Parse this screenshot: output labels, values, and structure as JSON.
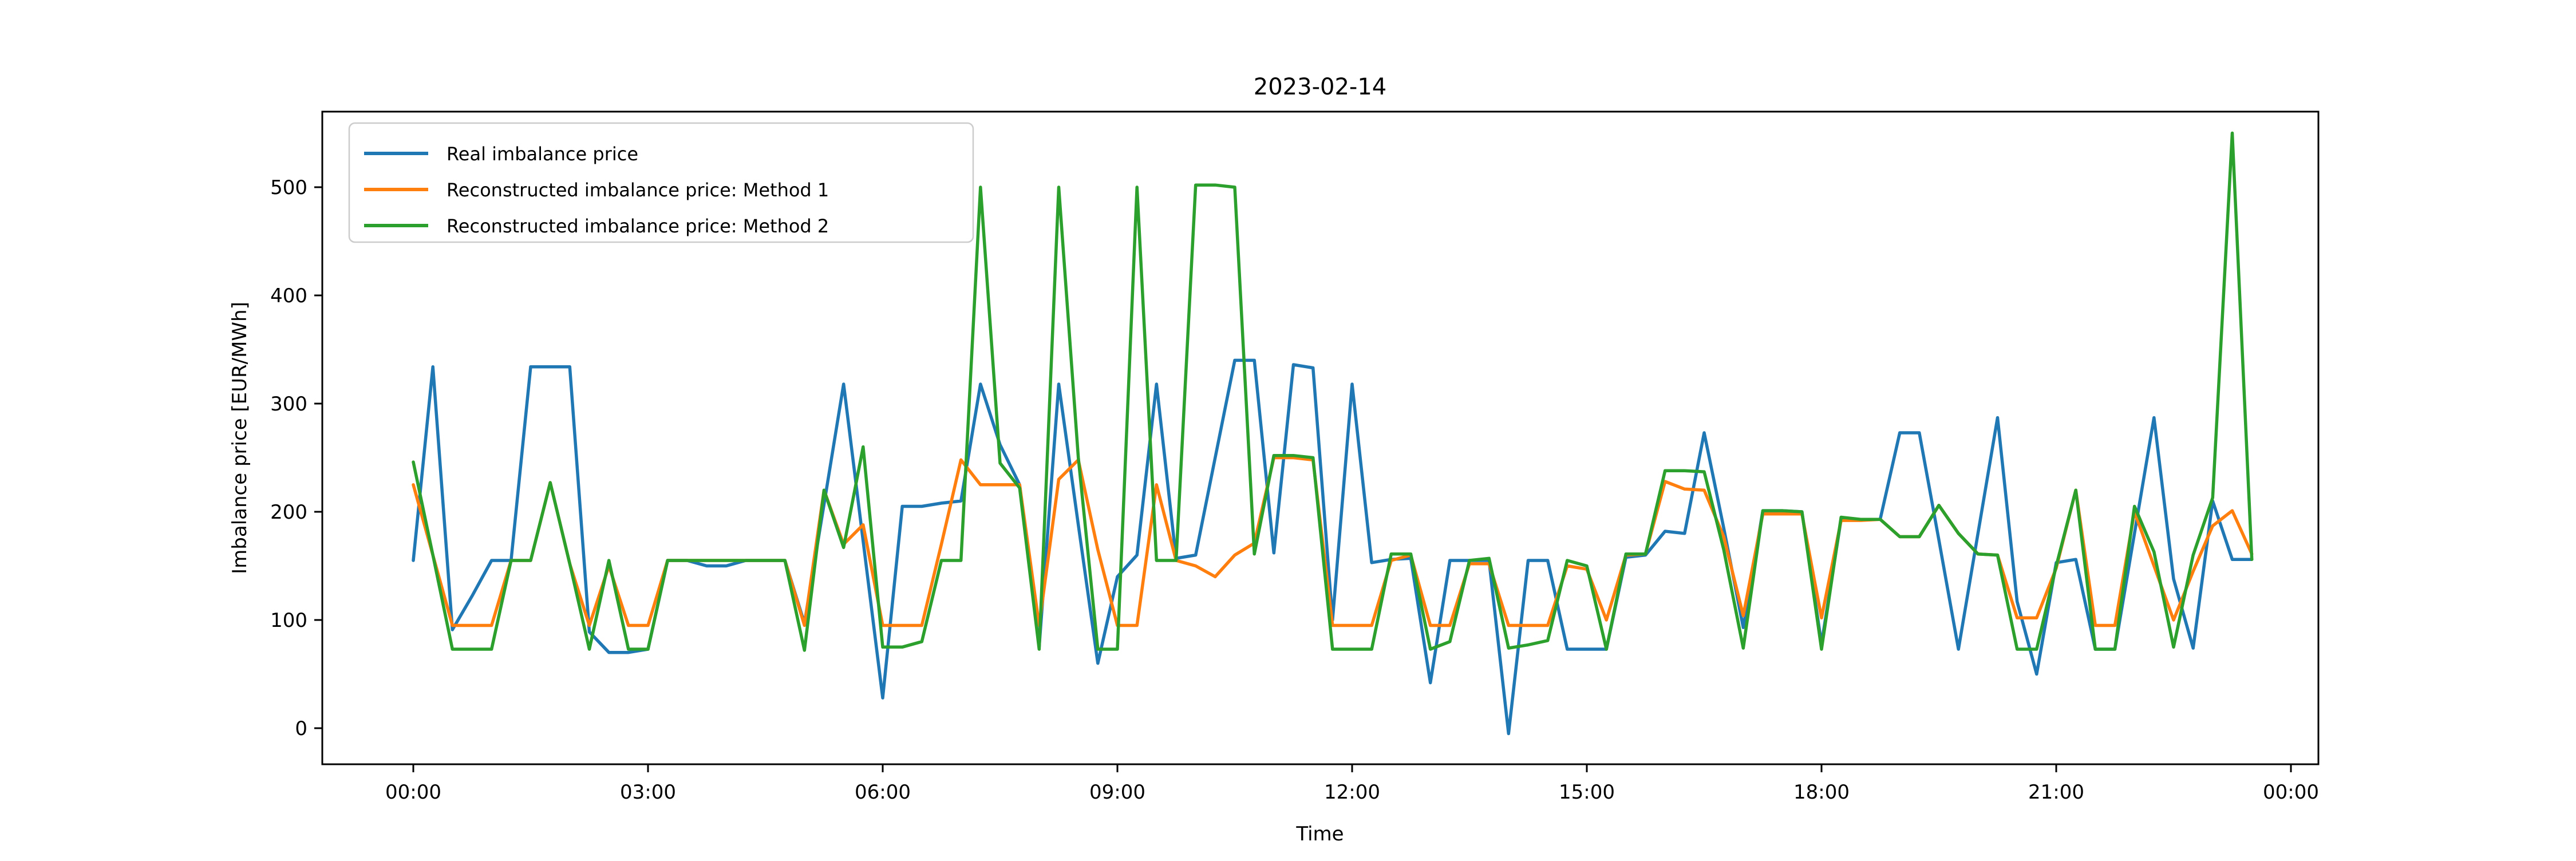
{
  "title": "2023-02-14",
  "chart_data": {
    "type": "line",
    "title": "2023-02-14",
    "xlabel": "Time",
    "ylabel": "Imbalance price [EUR/MWh]",
    "x_tick_labels": [
      "00:00",
      "03:00",
      "06:00",
      "09:00",
      "12:00",
      "15:00",
      "18:00",
      "21:00",
      "00:00"
    ],
    "y_ticks": [
      0,
      100,
      200,
      300,
      400,
      500
    ],
    "ylim": [
      -33,
      570
    ],
    "grid": false,
    "legend_position": "upper left",
    "x": [
      "00:00",
      "00:15",
      "00:30",
      "00:45",
      "01:00",
      "01:15",
      "01:30",
      "01:45",
      "02:00",
      "02:15",
      "02:30",
      "02:45",
      "03:00",
      "03:15",
      "03:30",
      "03:45",
      "04:00",
      "04:15",
      "04:30",
      "04:45",
      "05:00",
      "05:15",
      "05:30",
      "05:45",
      "06:00",
      "06:15",
      "06:30",
      "06:45",
      "07:00",
      "07:15",
      "07:30",
      "07:45",
      "08:00",
      "08:15",
      "08:30",
      "08:45",
      "09:00",
      "09:15",
      "09:30",
      "09:45",
      "10:00",
      "10:15",
      "10:30",
      "10:45",
      "11:00",
      "11:15",
      "11:30",
      "11:45",
      "12:00",
      "12:15",
      "12:30",
      "12:45",
      "13:00",
      "13:15",
      "13:30",
      "13:45",
      "14:00",
      "14:15",
      "14:30",
      "14:45",
      "15:00",
      "15:15",
      "15:30",
      "15:45",
      "16:00",
      "16:15",
      "16:30",
      "16:45",
      "17:00",
      "17:15",
      "17:30",
      "17:45",
      "18:00",
      "18:15",
      "18:30",
      "18:45",
      "19:00",
      "19:15",
      "19:30",
      "19:45",
      "20:00",
      "20:15",
      "20:30",
      "20:45",
      "21:00",
      "21:15",
      "21:30",
      "21:45",
      "22:00",
      "22:15",
      "22:30",
      "22:45",
      "23:00",
      "23:15",
      "23:30"
    ],
    "series": [
      {
        "name": "Real imbalance price",
        "color": "#1f77b4",
        "values": [
          155,
          334,
          91,
          122,
          155,
          155,
          334,
          334,
          334,
          89,
          70,
          70,
          73,
          155,
          155,
          150,
          150,
          155,
          155,
          155,
          97,
          207,
          318,
          173,
          28,
          205,
          205,
          208,
          210,
          318,
          262,
          225,
          75,
          318,
          188,
          60,
          140,
          160,
          318,
          157,
          160,
          250,
          340,
          340,
          162,
          336,
          333,
          100,
          318,
          153,
          156,
          157,
          42,
          155,
          155,
          155,
          -5,
          155,
          155,
          73,
          73,
          73,
          158,
          160,
          182,
          180,
          273,
          185,
          93,
          201,
          201,
          200,
          78,
          193,
          193,
          193,
          273,
          273,
          174,
          73,
          180,
          287,
          117,
          50,
          153,
          156,
          73,
          73,
          180,
          287,
          138,
          74,
          210,
          156,
          156
        ]
      },
      {
        "name": "Reconstructed imbalance price: Method 1",
        "color": "#ff7f0e",
        "values": [
          225,
          160,
          95,
          95,
          95,
          155,
          155,
          227,
          152,
          95,
          150,
          95,
          95,
          155,
          155,
          155,
          155,
          155,
          155,
          155,
          95,
          220,
          170,
          188,
          95,
          95,
          95,
          170,
          248,
          225,
          225,
          225,
          95,
          230,
          248,
          165,
          95,
          95,
          225,
          155,
          150,
          140,
          160,
          171,
          250,
          250,
          248,
          95,
          95,
          95,
          155,
          160,
          95,
          95,
          152,
          152,
          95,
          95,
          95,
          150,
          147,
          100,
          160,
          161,
          228,
          221,
          220,
          177,
          104,
          198,
          198,
          198,
          102,
          192,
          192,
          193,
          177,
          177,
          206,
          180,
          161,
          160,
          102,
          102,
          148,
          220,
          95,
          95,
          200,
          150,
          100,
          145,
          187,
          201,
          161
        ]
      },
      {
        "name": "Reconstructed imbalance price: Method 2",
        "color": "#2ca02c",
        "values": [
          246,
          160,
          73,
          73,
          73,
          155,
          155,
          227,
          152,
          73,
          155,
          73,
          73,
          155,
          155,
          155,
          155,
          155,
          155,
          155,
          72,
          220,
          167,
          260,
          75,
          75,
          80,
          155,
          155,
          500,
          245,
          222,
          73,
          500,
          250,
          73,
          73,
          500,
          155,
          155,
          502,
          502,
          500,
          161,
          252,
          252,
          250,
          73,
          73,
          73,
          161,
          161,
          73,
          80,
          155,
          157,
          74,
          77,
          81,
          155,
          150,
          73,
          161,
          161,
          238,
          238,
          237,
          165,
          74,
          201,
          201,
          200,
          73,
          195,
          193,
          193,
          177,
          177,
          206,
          180,
          161,
          160,
          73,
          73,
          150,
          220,
          73,
          73,
          205,
          163,
          75,
          160,
          213,
          550,
          156
        ]
      }
    ]
  }
}
